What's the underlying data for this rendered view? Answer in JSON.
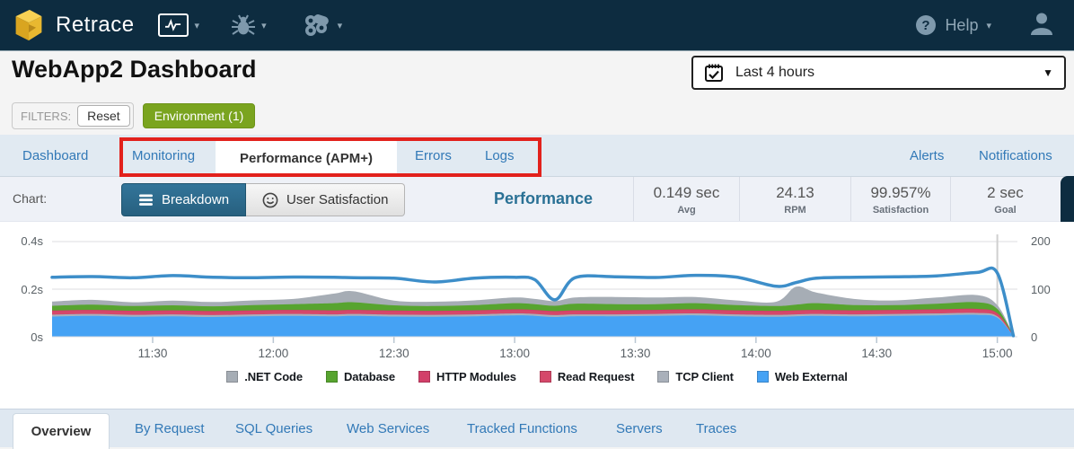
{
  "navbar": {
    "brand": "Retrace",
    "help_label": "Help"
  },
  "header": {
    "title": "WebApp2 Dashboard",
    "time_range": "Last 4 hours"
  },
  "filters": {
    "label": "FILTERS:",
    "reset_label": "Reset",
    "environment_label": "Environment (1)"
  },
  "tabs": {
    "items": [
      "Dashboard",
      "Monitoring",
      "Performance (APM+)",
      "Errors",
      "Logs"
    ],
    "active": "Performance (APM+)",
    "right_items": [
      "Alerts",
      "Notifications"
    ]
  },
  "panel": {
    "chart_label": "Chart:",
    "breakdown_label": "Breakdown",
    "user_satisfaction_label": "User Satisfaction",
    "title": "Performance",
    "stats": [
      {
        "value": "0.149 sec",
        "label": "Avg"
      },
      {
        "value": "24.13",
        "label": "RPM"
      },
      {
        "value": "99.957%",
        "label": "Satisfaction"
      },
      {
        "value": "2 sec",
        "label": "Goal"
      }
    ]
  },
  "chart_data": {
    "type": "area",
    "stacked": true,
    "title": "Performance breakdown over time",
    "x_range": [
      "11:05",
      "15:05"
    ],
    "x_ticks": [
      "11:30",
      "12:00",
      "12:30",
      "13:00",
      "13:30",
      "14:00",
      "14:30",
      "15:00"
    ],
    "y_left": {
      "ticks": [
        "0.4s",
        "0.2s",
        "0s"
      ],
      "range_seconds": [
        0,
        0.45
      ]
    },
    "y_right": {
      "ticks": [
        "200",
        "100",
        "0"
      ],
      "range_rpm": [
        0,
        225
      ]
    },
    "marker_x": "15:00",
    "x": [
      "11:05",
      "11:15",
      "11:25",
      "11:35",
      "11:45",
      "11:55",
      "12:05",
      "12:15",
      "12:20",
      "12:30",
      "12:40",
      "12:50",
      "13:00",
      "13:05",
      "13:10",
      "13:15",
      "13:25",
      "13:35",
      "13:45",
      "13:55",
      "14:05",
      "14:10",
      "14:15",
      "14:25",
      "14:35",
      "14:45",
      "14:55",
      "15:00",
      "15:04"
    ],
    "series": [
      {
        "name": ".NET Code",
        "color": "#a6adb5",
        "values": [
          0.018,
          0.02,
          0.016,
          0.02,
          0.018,
          0.02,
          0.022,
          0.04,
          0.046,
          0.02,
          0.018,
          0.02,
          0.024,
          0.022,
          0.02,
          0.026,
          0.03,
          0.028,
          0.026,
          0.02,
          0.018,
          0.075,
          0.045,
          0.025,
          0.02,
          0.026,
          0.03,
          0.016,
          0.001
        ]
      },
      {
        "name": "Database",
        "color": "#57a42f",
        "values": [
          0.02,
          0.022,
          0.02,
          0.021,
          0.02,
          0.022,
          0.024,
          0.03,
          0.032,
          0.022,
          0.02,
          0.022,
          0.026,
          0.024,
          0.022,
          0.028,
          0.026,
          0.024,
          0.026,
          0.022,
          0.02,
          0.024,
          0.028,
          0.022,
          0.02,
          0.024,
          0.028,
          0.018,
          0.001
        ]
      },
      {
        "name": "HTTP Modules",
        "color": "#d23f69",
        "values": [
          0.004,
          0.004,
          0.004,
          0.004,
          0.004,
          0.004,
          0.004,
          0.004,
          0.004,
          0.004,
          0.004,
          0.004,
          0.004,
          0.004,
          0.004,
          0.004,
          0.004,
          0.004,
          0.004,
          0.004,
          0.004,
          0.004,
          0.004,
          0.004,
          0.004,
          0.004,
          0.004,
          0.003,
          0.001
        ]
      },
      {
        "name": "Read Request",
        "color": "#d5486a",
        "values": [
          0.013,
          0.013,
          0.013,
          0.013,
          0.013,
          0.013,
          0.013,
          0.013,
          0.013,
          0.013,
          0.013,
          0.013,
          0.013,
          0.013,
          0.013,
          0.013,
          0.013,
          0.013,
          0.013,
          0.013,
          0.013,
          0.013,
          0.013,
          0.013,
          0.013,
          0.013,
          0.013,
          0.01,
          0.001
        ]
      },
      {
        "name": "TCP Client",
        "color": "#a9b0ba",
        "values": [
          0.008,
          0.008,
          0.008,
          0.008,
          0.008,
          0.008,
          0.008,
          0.008,
          0.008,
          0.008,
          0.008,
          0.008,
          0.008,
          0.008,
          0.008,
          0.008,
          0.008,
          0.008,
          0.008,
          0.008,
          0.008,
          0.008,
          0.008,
          0.008,
          0.008,
          0.008,
          0.008,
          0.006,
          0.001
        ]
      },
      {
        "name": "Web External",
        "color": "#45a2f4",
        "values": [
          0.085,
          0.088,
          0.084,
          0.086,
          0.083,
          0.086,
          0.088,
          0.086,
          0.088,
          0.085,
          0.084,
          0.086,
          0.09,
          0.088,
          0.083,
          0.086,
          0.086,
          0.088,
          0.09,
          0.086,
          0.084,
          0.086,
          0.088,
          0.086,
          0.088,
          0.09,
          0.092,
          0.08,
          0.002
        ]
      }
    ],
    "stack_order": [
      "Web External",
      "TCP Client",
      "Read Request",
      "HTTP Modules",
      "Database",
      ".NET Code"
    ],
    "overlay_line": {
      "color": "#3d8ec9",
      "values": [
        0.25,
        0.253,
        0.248,
        0.257,
        0.25,
        0.248,
        0.251,
        0.25,
        0.248,
        0.246,
        0.23,
        0.246,
        0.25,
        0.24,
        0.155,
        0.248,
        0.252,
        0.249,
        0.258,
        0.251,
        0.212,
        0.228,
        0.246,
        0.25,
        0.252,
        0.256,
        0.27,
        0.268,
        0.004
      ]
    }
  },
  "bottom_tabs": {
    "items": [
      "Overview",
      "By Request",
      "SQL Queries",
      "Web Services",
      "Tracked Functions",
      "Servers",
      "Traces"
    ],
    "active": "Overview"
  },
  "colors": {
    "navbar_bg": "#0d2c40",
    "accent_blue": "#3279b7",
    "green_button": "#7aa41f",
    "annotation_red": "#e2211c",
    "panel_title": "#2a7195"
  }
}
